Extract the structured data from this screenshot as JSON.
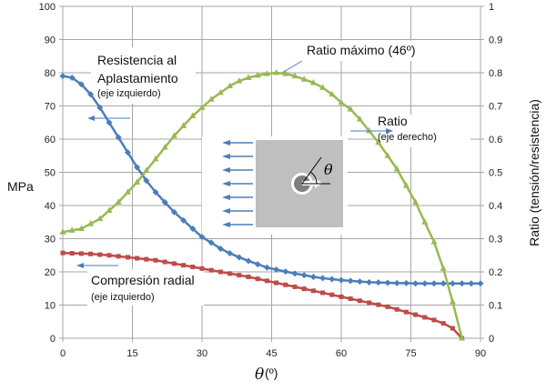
{
  "chart_data": {
    "type": "line",
    "title": "",
    "xlabel": "θ (º)",
    "ylabel_left": "MPa",
    "ylabel_right": "Ratio (tensión/resistencia)",
    "xlim": [
      0,
      90
    ],
    "ylim_left": [
      0,
      100
    ],
    "ylim_right": [
      0,
      1
    ],
    "x_ticks": [
      0,
      15,
      30,
      45,
      60,
      75,
      90
    ],
    "y_left_ticks": [
      0,
      10,
      20,
      30,
      40,
      50,
      60,
      70,
      80,
      90,
      100
    ],
    "y_right_ticks": [
      "0",
      "0.1",
      "0.2",
      "0.3",
      "0.4",
      "0.5",
      "0.6",
      "0.7",
      "0.8",
      "0.9",
      "1"
    ],
    "grid": true,
    "series": [
      {
        "name": "Resistencia al Aplastamiento",
        "axis": "left",
        "color": "#4a7ebb",
        "marker": "diamond",
        "x": [
          0,
          2,
          4,
          6,
          8,
          10,
          12,
          14,
          16,
          18,
          20,
          22,
          24,
          26,
          28,
          30,
          32,
          34,
          36,
          38,
          40,
          42,
          44,
          46,
          48,
          50,
          52,
          54,
          56,
          58,
          60,
          62,
          64,
          66,
          68,
          70,
          72,
          74,
          76,
          78,
          80,
          82,
          84,
          86,
          88,
          90
        ],
        "values": [
          79,
          78.5,
          76.5,
          73.5,
          69.5,
          65,
          60.5,
          56,
          51.5,
          47.5,
          44,
          41,
          38,
          35.5,
          33,
          30.5,
          28.8,
          27,
          25.6,
          24.4,
          23.3,
          22.3,
          21.3,
          20.7,
          20.1,
          19.5,
          19,
          18.5,
          18.1,
          17.8,
          17.5,
          17.3,
          17.1,
          16.9,
          16.8,
          16.7,
          16.6,
          16.6,
          16.5,
          16.5,
          16.5,
          16.5,
          16.5,
          16.5,
          16.5,
          16.5
        ]
      },
      {
        "name": "Compresión radial",
        "axis": "left",
        "color": "#be4b48",
        "marker": "square",
        "x": [
          0,
          2,
          4,
          6,
          8,
          10,
          12,
          14,
          16,
          18,
          20,
          22,
          24,
          26,
          28,
          30,
          32,
          34,
          36,
          38,
          40,
          42,
          44,
          46,
          48,
          50,
          52,
          54,
          56,
          58,
          60,
          62,
          64,
          66,
          68,
          70,
          72,
          74,
          76,
          78,
          80,
          82,
          84,
          86
        ],
        "values": [
          25.7,
          25.6,
          25.5,
          25.4,
          25.2,
          25,
          24.7,
          24.4,
          24.1,
          23.8,
          23.5,
          23,
          22.5,
          22,
          21.5,
          21,
          20.5,
          20,
          19.5,
          19,
          18.5,
          17.9,
          17.3,
          16.7,
          16.1,
          15.5,
          14.9,
          14.3,
          13.7,
          13.1,
          12.5,
          11.9,
          11.3,
          10.7,
          10.1,
          9.5,
          8.7,
          7.9,
          7.1,
          6.3,
          5.5,
          4.5,
          3,
          0
        ]
      },
      {
        "name": "Ratio",
        "axis": "right",
        "color": "#98b954",
        "marker": "triangle",
        "x": [
          0,
          2,
          4,
          6,
          8,
          10,
          12,
          14,
          16,
          18,
          20,
          22,
          24,
          26,
          28,
          30,
          32,
          34,
          36,
          38,
          40,
          42,
          44,
          46,
          48,
          50,
          52,
          54,
          56,
          58,
          60,
          62,
          64,
          66,
          68,
          70,
          72,
          74,
          76,
          78,
          80,
          82,
          84,
          86
        ],
        "values": [
          0.32,
          0.325,
          0.33,
          0.345,
          0.36,
          0.385,
          0.41,
          0.44,
          0.47,
          0.505,
          0.54,
          0.575,
          0.61,
          0.64,
          0.67,
          0.695,
          0.72,
          0.74,
          0.76,
          0.775,
          0.785,
          0.792,
          0.797,
          0.8,
          0.797,
          0.79,
          0.78,
          0.77,
          0.755,
          0.735,
          0.71,
          0.69,
          0.66,
          0.625,
          0.59,
          0.55,
          0.51,
          0.46,
          0.41,
          0.35,
          0.29,
          0.21,
          0.11,
          0
        ]
      }
    ],
    "annotations": [
      {
        "id": "resistencia",
        "line1": "Resistencia al",
        "line2": "Aplastamiento",
        "sub": "(eje izquierdo)"
      },
      {
        "id": "compresion",
        "line1": "Compresión radial",
        "sub": "(eje izquierdo)"
      },
      {
        "id": "ratio",
        "line1": "Ratio",
        "sub": "(eje derecho)"
      },
      {
        "id": "ratio_max",
        "line1": "Ratio máximo (46º)"
      }
    ],
    "inset": {
      "description": "plate with loaded hole; horizontal load arrows; angle θ",
      "symbol": "θ"
    }
  },
  "labels": {
    "ylabel_left": "MPa",
    "ylabel_right": "Ratio (tensión/resistencia)",
    "xlabel_theta": "θ",
    "xlabel_unit": "(º)",
    "res_line1": "Resistencia al",
    "res_line2": "Aplastamiento",
    "res_sub": "(eje izquierdo)",
    "comp_line1": "Compresión radial",
    "comp_sub": "(eje izquierdo)",
    "ratio_line1": "Ratio",
    "ratio_sub": "(eje derecho)",
    "ratiomax": "Ratio máximo (46º)",
    "inset_theta": "θ"
  },
  "colors": {
    "blue": "#4a7ebb",
    "red": "#be4b48",
    "green": "#98b954",
    "arrow": "#4a7ebb",
    "grid": "#a6a6a6",
    "inset_bg": "#bfbfbf",
    "inset_hole": "#7f7f7f"
  }
}
